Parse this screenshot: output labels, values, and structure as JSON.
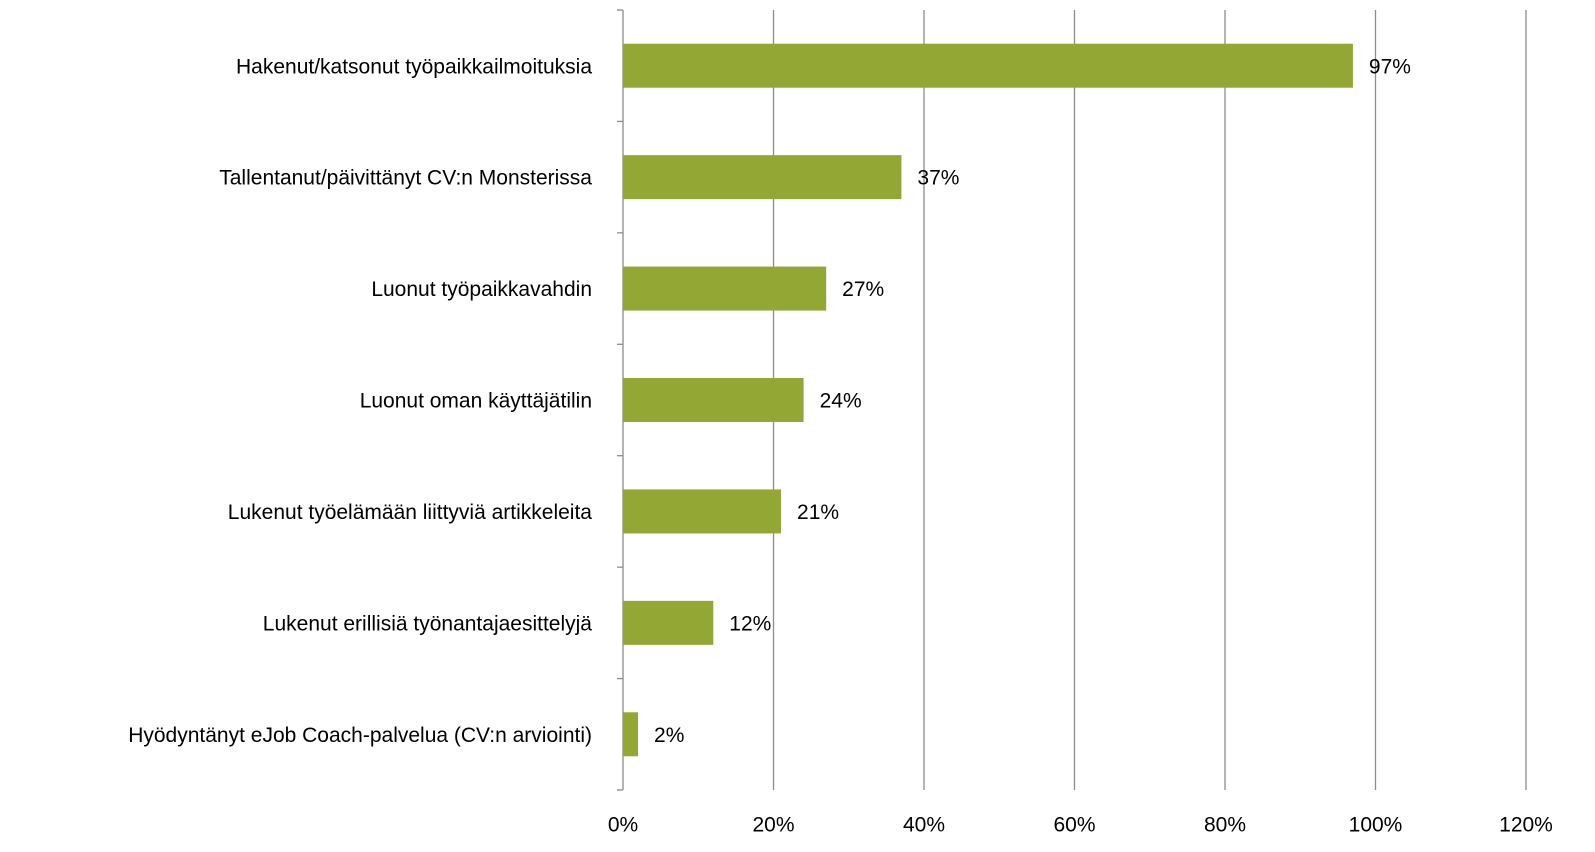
{
  "chart_data": {
    "type": "hbar",
    "categories": [
      "Hakenut/katsonut työpaikkailmoituksia",
      "Tallentanut/päivittänyt CV:n Monsterissa",
      "Luonut työpaikkavahdin",
      "Luonut oman käyttäjätilin",
      "Lukenut työelämään liittyviä artikkeleita",
      "Lukenut erillisiä työnantajaesittelyjä",
      "Hyödyntänyt eJob Coach-palvelua (CV:n arviointi)"
    ],
    "values": [
      97,
      37,
      27,
      24,
      21,
      12,
      2
    ],
    "value_labels": [
      "97%",
      "37%",
      "27%",
      "24%",
      "21%",
      "12%",
      "2%"
    ],
    "color": "#93a834",
    "xlim": [
      0,
      120
    ],
    "xticks": [
      {
        "value": 0,
        "label": "0%"
      },
      {
        "value": 20,
        "label": "20%"
      },
      {
        "value": 40,
        "label": "40%"
      },
      {
        "value": 60,
        "label": "60%"
      },
      {
        "value": 80,
        "label": "80%"
      },
      {
        "value": 100,
        "label": "100%"
      },
      {
        "value": 120,
        "label": "120%"
      }
    ],
    "grid": true
  }
}
